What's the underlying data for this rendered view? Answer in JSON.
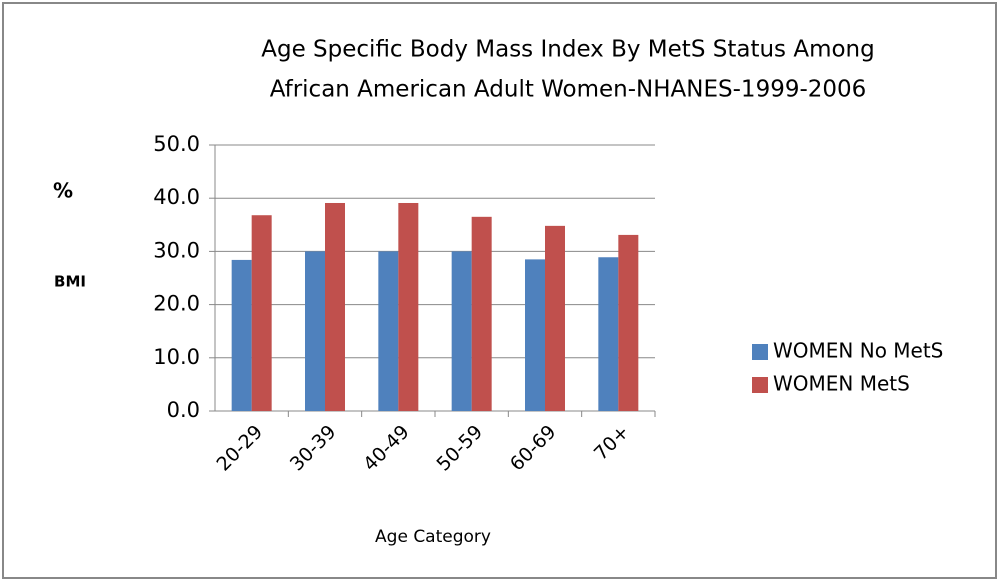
{
  "chart_data": {
    "type": "bar",
    "title": [
      "Age Specific Body Mass Index By MetS Status Among",
      "African American Adult Women-NHANES-1999-2006"
    ],
    "ylabel": [
      "%",
      "BMI"
    ],
    "xlabel": "Age Category",
    "categories": [
      "20-29",
      "30-39",
      "40-49",
      "50-59",
      "60-69",
      "70+"
    ],
    "series": [
      {
        "name": "WOMEN No MetS",
        "color": "#4f81bd",
        "values": [
          28.4,
          30,
          30,
          30,
          28.5,
          28.9
        ]
      },
      {
        "name": "WOMEN MetS",
        "color": "#c0504d",
        "values": [
          36.8,
          39.1,
          39.1,
          36.5,
          34.8,
          33.1
        ]
      }
    ],
    "ylim": [
      0,
      50
    ],
    "yticks": [
      {
        "value": 0,
        "label": "0.0"
      },
      {
        "value": 10,
        "label": "10.0"
      },
      {
        "value": 20,
        "label": "20.0"
      },
      {
        "value": 30,
        "label": "30.0"
      },
      {
        "value": 40,
        "label": "40.0"
      },
      {
        "value": 50,
        "label": "50.0"
      }
    ],
    "grid": true,
    "legend": "right"
  }
}
